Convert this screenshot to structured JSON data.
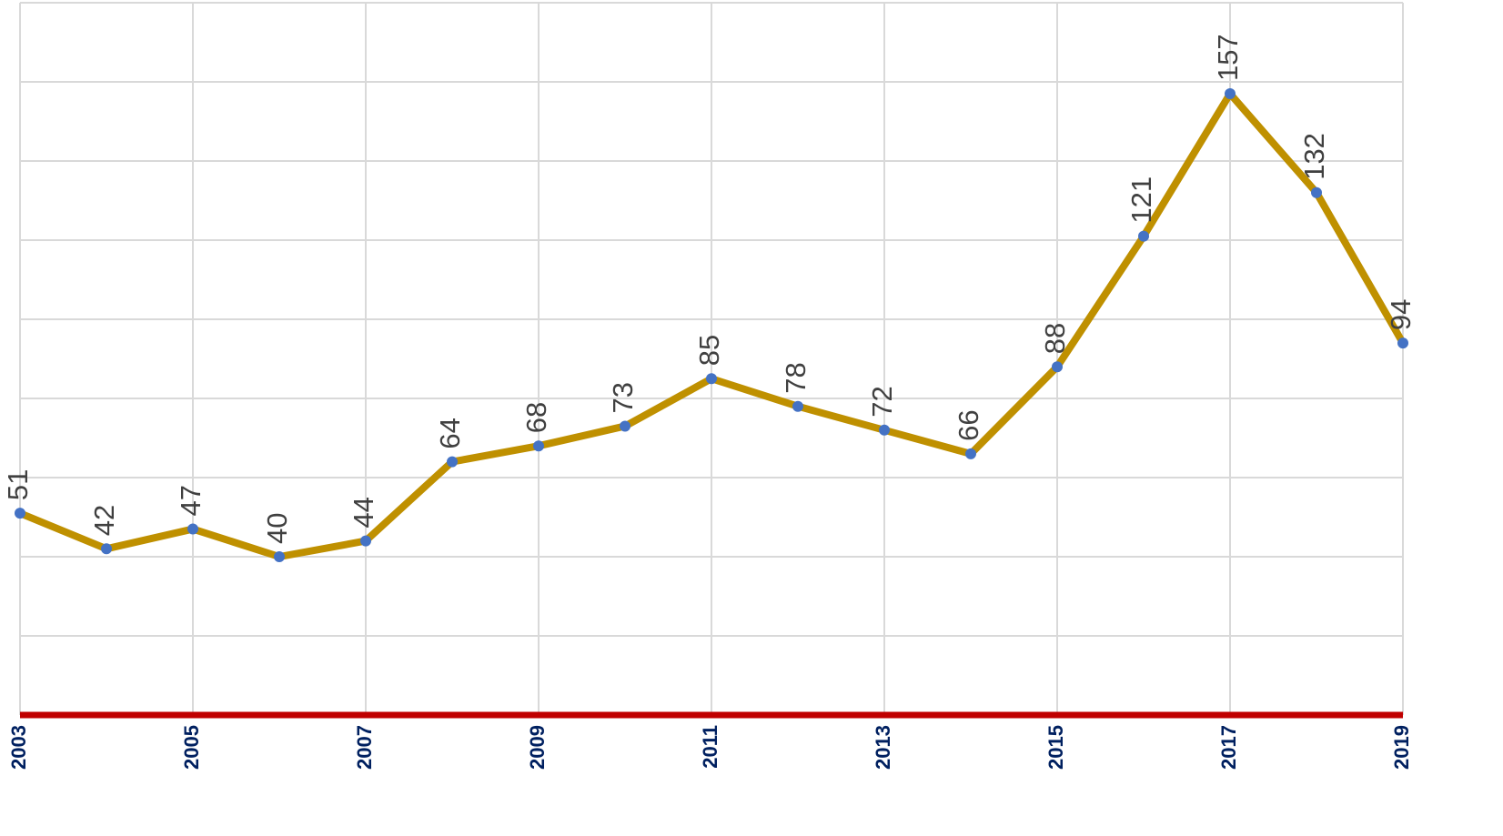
{
  "chart_data": {
    "type": "line",
    "categories": [
      "2003",
      null,
      "2005",
      null,
      "2007",
      null,
      "2009",
      null,
      "2011",
      null,
      "2013",
      null,
      "2015",
      null,
      "2017",
      null,
      "2019"
    ],
    "series": [
      {
        "color": "#bf9000",
        "marker_color": "#4472c4",
        "values": [
          51,
          42,
          47,
          40,
          44,
          64,
          68,
          73,
          85,
          78,
          72,
          66,
          88,
          121,
          157,
          132,
          94
        ]
      }
    ],
    "ylim": [
      0,
      180
    ],
    "yticks": [
      0,
      20,
      40,
      60,
      80,
      100,
      120,
      140,
      160,
      180
    ],
    "grid": true,
    "axis_color": "#c00000"
  }
}
